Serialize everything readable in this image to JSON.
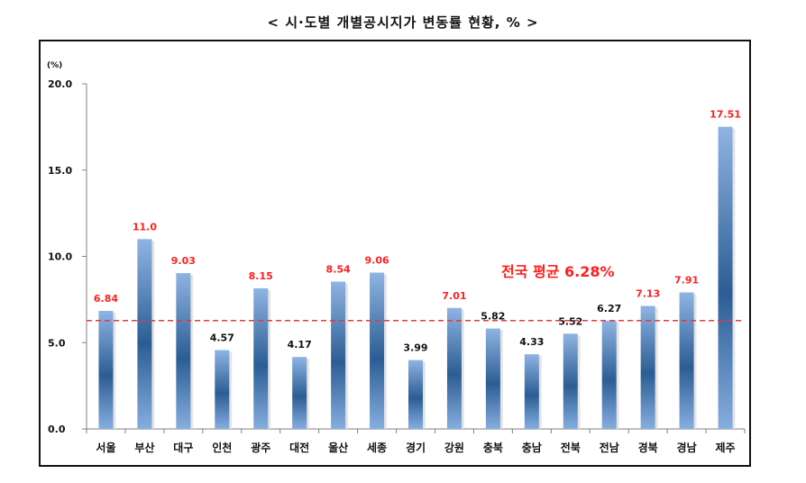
{
  "title": "< 시·도별 개별공시지가 변동률 현황, % >",
  "colors": {
    "bar_dark": "#2b5d94",
    "bar_light": "#8fb4e3",
    "accent": "#ff2020",
    "avg_line": "#e8383d"
  },
  "chart_data": {
    "type": "bar",
    "title": "< 시·도별 개별공시지가 변동률 현황, % >",
    "unit_label": "(%)",
    "categories": [
      "서울",
      "부산",
      "대구",
      "인천",
      "광주",
      "대전",
      "울산",
      "세종",
      "경기",
      "강원",
      "충북",
      "충남",
      "전북",
      "전남",
      "경북",
      "경남",
      "제주"
    ],
    "values": [
      6.84,
      11.0,
      9.03,
      4.57,
      8.15,
      4.17,
      8.54,
      9.06,
      3.99,
      7.01,
      5.82,
      4.33,
      5.52,
      6.27,
      7.13,
      7.91,
      17.51
    ],
    "value_labels": [
      "6.84",
      "11.0",
      "9.03",
      "4.57",
      "8.15",
      "4.17",
      "8.54",
      "9.06",
      "3.99",
      "7.01",
      "5.82",
      "4.33",
      "5.52",
      "6.27",
      "7.13",
      "7.91",
      "17.51"
    ],
    "highlighted": [
      true,
      true,
      true,
      false,
      true,
      false,
      true,
      true,
      false,
      true,
      false,
      false,
      false,
      false,
      true,
      true,
      true
    ],
    "ylim": [
      0,
      20
    ],
    "yticks": [
      "0.0",
      "5.0",
      "10.0",
      "15.0",
      "20.0"
    ],
    "average": {
      "value": 6.28,
      "label": "전국 평균 6.28%"
    },
    "grid": false,
    "legend": "none"
  }
}
